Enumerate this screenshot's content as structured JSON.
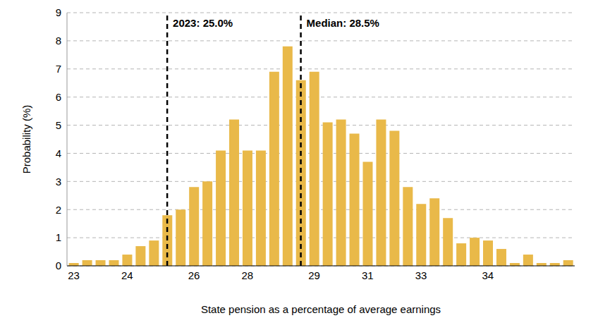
{
  "chart_data": {
    "type": "bar",
    "x_label": "State pension as a percentage of average earnings",
    "y_label": "Probability (%)",
    "categories": [
      "23",
      null,
      null,
      null,
      "24",
      null,
      null,
      null,
      null,
      "26",
      null,
      null,
      null,
      "28",
      null,
      null,
      null,
      null,
      "29",
      null,
      null,
      null,
      "31",
      null,
      null,
      null,
      "33",
      null,
      null,
      null,
      null,
      "34",
      null,
      null,
      null,
      null,
      null,
      null
    ],
    "values": [
      0.1,
      0.2,
      0.2,
      0.2,
      0.4,
      0.7,
      0.9,
      1.8,
      2.0,
      2.8,
      3.0,
      4.1,
      5.2,
      4.1,
      4.1,
      6.9,
      7.8,
      6.6,
      6.9,
      5.1,
      5.2,
      4.7,
      3.7,
      5.2,
      4.8,
      2.8,
      2.2,
      2.4,
      1.7,
      0.8,
      1.0,
      0.9,
      0.6,
      0.1,
      0.4,
      0.1,
      0.1,
      0.2
    ],
    "color": "#e9b949",
    "ylim": [
      0,
      9
    ],
    "yticks": [
      0,
      1,
      2,
      3,
      4,
      5,
      6,
      7,
      8,
      9
    ],
    "grid": true,
    "annotations": [
      {
        "text": "2023: 25.0%",
        "x": 7
      },
      {
        "text": "Median: 28.5%",
        "x": 17
      }
    ]
  }
}
